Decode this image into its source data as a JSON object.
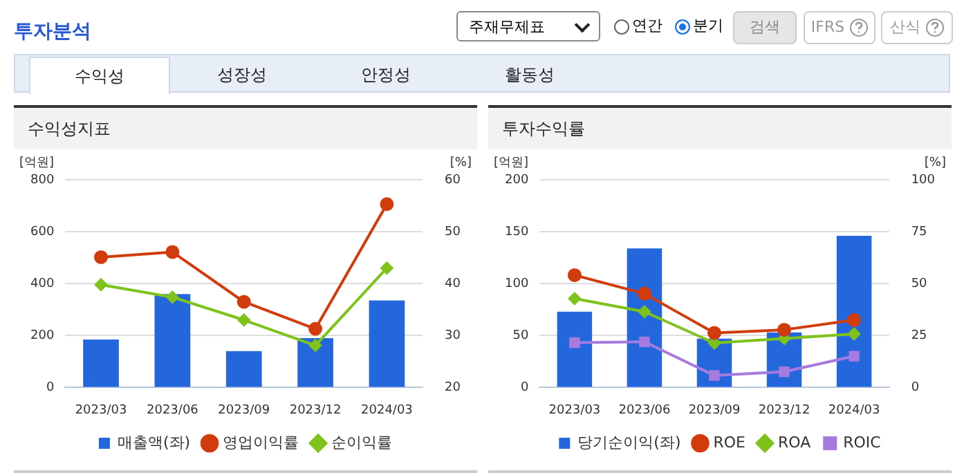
{
  "chart_data": [
    {
      "type": "other",
      "title": "투자분석",
      "annotations": [
        "주재무제표",
        "연간",
        "분기",
        "검색",
        "IFRS",
        "산식",
        "수익성",
        "성장성",
        "안정성",
        "활동성"
      ]
    },
    {
      "type": "bar",
      "title": "수익성지표",
      "ylabel": "[억원]",
      "y2label": "[%]",
      "categories": [
        "2023/03",
        "2023/06",
        "2023/09",
        "2023/12",
        "2024/03"
      ],
      "ylim": [
        0,
        800
      ],
      "yticks": [
        0,
        200,
        400,
        600,
        800
      ],
      "y2lim": [
        20,
        60
      ],
      "y2ticks": [
        20,
        30,
        40,
        50,
        60
      ],
      "grid": "y",
      "legend": "bottom",
      "series": [
        {
          "name": "매출액(좌)",
          "type": "bar",
          "color": "#2467dc",
          "values": [
            185,
            360,
            140,
            190,
            335
          ]
        },
        {
          "name": "영업이익률",
          "type": "line",
          "axis": "y2",
          "marker": "circle",
          "color": "#d23c0c",
          "values": [
            45.1,
            46.1,
            36.5,
            31.3,
            55.3
          ]
        },
        {
          "name": "순이익률",
          "type": "line",
          "axis": "y2",
          "marker": "diamond",
          "color": "#7ec21c",
          "values": [
            39.8,
            37.4,
            33.0,
            28.1,
            43.0
          ]
        }
      ]
    },
    {
      "type": "bar",
      "title": "투자수익률",
      "ylabel": "[억원]",
      "y2label": "[%]",
      "categories": [
        "2023/03",
        "2023/06",
        "2023/09",
        "2023/12",
        "2024/03"
      ],
      "ylim": [
        0,
        200
      ],
      "yticks": [
        0,
        50,
        100,
        150,
        200
      ],
      "y2lim": [
        0,
        100
      ],
      "y2ticks": [
        0,
        25,
        50,
        75,
        100
      ],
      "grid": "y",
      "legend": "bottom",
      "series": [
        {
          "name": "당기순이익(좌)",
          "type": "bar",
          "color": "#2467dc",
          "values": [
            73,
            134,
            47,
            53,
            146
          ]
        },
        {
          "name": "ROE",
          "type": "line",
          "axis": "y2",
          "marker": "circle",
          "color": "#d23c0c",
          "values": [
            54.1,
            45.2,
            26.3,
            27.8,
            32.5
          ]
        },
        {
          "name": "ROA",
          "type": "line",
          "axis": "y2",
          "marker": "diamond",
          "color": "#7ec21c",
          "values": [
            42.8,
            36.5,
            21.4,
            23.6,
            25.8
          ]
        },
        {
          "name": "ROIC",
          "type": "line",
          "axis": "y2",
          "marker": "square",
          "color": "#a57be0",
          "values": [
            21.6,
            22.0,
            5.8,
            7.6,
            15.1
          ]
        }
      ]
    }
  ]
}
